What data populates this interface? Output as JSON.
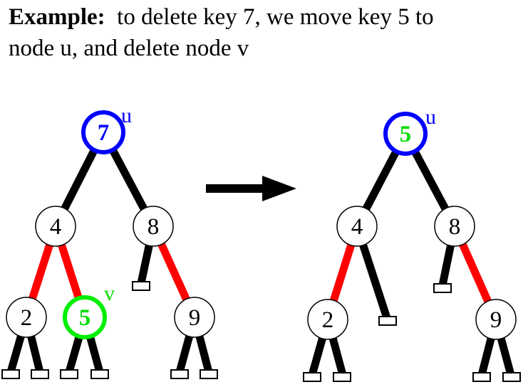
{
  "caption": {
    "lead": "Example:",
    "line1_rest": "to delete key 7, we move key 5 to",
    "line2": "node u, and delete node v"
  },
  "colors": {
    "black_edge": "#000000",
    "red_edge": "#ff0000",
    "u_node": "#0000ff",
    "v_node": "#00ee00",
    "moved_key": "#00dd00"
  },
  "left_tree": {
    "root": {
      "key": "7",
      "tag": "u"
    },
    "left": {
      "key": "4"
    },
    "right": {
      "key": "8"
    },
    "ll": {
      "key": "2"
    },
    "lr": {
      "key": "5",
      "tag": "v"
    },
    "rr": {
      "key": "9"
    }
  },
  "right_tree": {
    "root": {
      "key": "5",
      "tag": "u"
    },
    "left": {
      "key": "4"
    },
    "right": {
      "key": "8"
    },
    "ll": {
      "key": "2"
    },
    "rr": {
      "key": "9"
    }
  }
}
